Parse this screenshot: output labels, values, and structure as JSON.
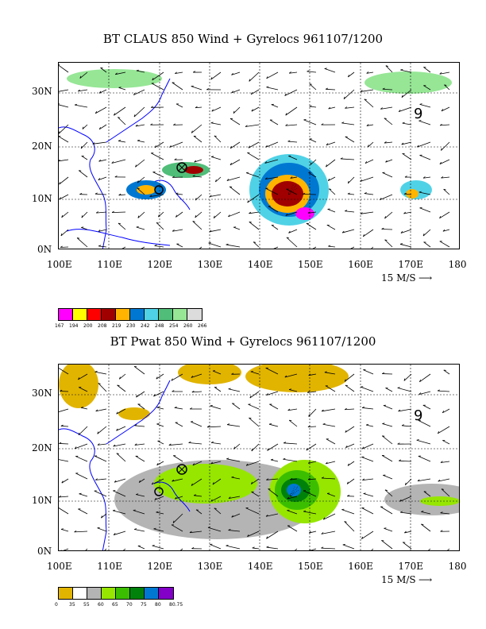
{
  "panel1": {
    "title": "BT CLAUS 850 Wind + Gyrelocs 961107/1200",
    "lat_labels": [
      "30N",
      "20N",
      "10N",
      "0N"
    ],
    "lon_labels": [
      "100E",
      "110E",
      "120E",
      "130E",
      "140E",
      "150E",
      "160E",
      "170E",
      "180"
    ],
    "scale_label": "15 M/S",
    "legend_labels": [
      "167",
      "194",
      "200",
      "208",
      "219",
      "230",
      "242",
      "248",
      "254",
      "260",
      "266"
    ],
    "legend_colors": [
      "#ff00ff",
      "#ffff00",
      "#ff0000",
      "#a00000",
      "#ffb400",
      "#0078d2",
      "#50d2e6",
      "#50be78",
      "#96e696",
      "#dcdcdc"
    ]
  },
  "panel2": {
    "title": "BT Pwat 850 Wind + Gyrelocs 961107/1200",
    "lat_labels": [
      "30N",
      "20N",
      "10N",
      "0N"
    ],
    "lon_labels": [
      "100E",
      "110E",
      "120E",
      "130E",
      "140E",
      "150E",
      "160E",
      "170E",
      "180"
    ],
    "scale_label": "15 M/S",
    "legend_labels": [
      "0",
      "35",
      "55",
      "60",
      "65",
      "70",
      "75",
      "80",
      "80.75"
    ],
    "legend_colors": [
      "#e1b400",
      "#ffffff",
      "#b4b4b4",
      "#96e600",
      "#3cbe00",
      "#00820a",
      "#0078d2",
      "#8200c8"
    ]
  }
}
